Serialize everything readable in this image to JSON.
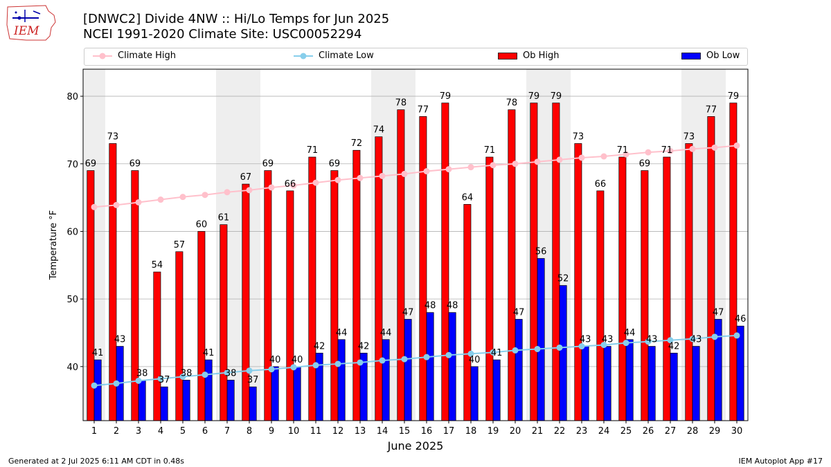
{
  "header": {
    "title_line1": "[DNWC2] Divide 4NW :: Hi/Lo Temps for Jun 2025",
    "title_line2": "NCEI 1991-2020 Climate Site: USC00052294",
    "logo_text": "IEM"
  },
  "legend": {
    "climate_high": "Climate High",
    "climate_low": "Climate Low",
    "ob_high": "Ob High",
    "ob_low": "Ob Low"
  },
  "footer": {
    "left": "Generated at 2 Jul 2025 6:11 AM CDT in 0.48s",
    "right": "IEM Autoplot App #17"
  },
  "colors": {
    "ob_high": "#ff0000",
    "ob_low": "#0000ff",
    "climate_high": "#ffc0cb",
    "climate_low": "#87ceeb",
    "weekend_shade": "#eeeeee",
    "grid": "#b0b0b0"
  },
  "chart_data": {
    "type": "bar",
    "title": "[DNWC2] Divide 4NW :: Hi/Lo Temps for Jun 2025",
    "subtitle": "NCEI 1991-2020 Climate Site: USC00052294",
    "xlabel": "June 2025",
    "ylabel": "Temperature °F",
    "ylim": [
      32,
      84
    ],
    "yticks": [
      40,
      50,
      60,
      70,
      80
    ],
    "grid": "horizontal",
    "legend_position": "top",
    "categories": [
      "1",
      "2",
      "3",
      "4",
      "5",
      "6",
      "7",
      "8",
      "9",
      "10",
      "11",
      "12",
      "13",
      "14",
      "15",
      "16",
      "17",
      "18",
      "19",
      "20",
      "21",
      "22",
      "23",
      "24",
      "25",
      "26",
      "27",
      "28",
      "29",
      "30"
    ],
    "weekend_days": [
      1,
      7,
      8,
      14,
      15,
      21,
      22,
      28,
      29
    ],
    "series": [
      {
        "name": "Ob High",
        "kind": "bar",
        "values": [
          69,
          73,
          69,
          54,
          57,
          60,
          61,
          67,
          69,
          66,
          71,
          69,
          72,
          74,
          78,
          77,
          79,
          64,
          71,
          78,
          79,
          79,
          73,
          66,
          71,
          69,
          71,
          73,
          77,
          79
        ]
      },
      {
        "name": "Ob Low",
        "kind": "bar",
        "values": [
          41,
          43,
          38,
          37,
          38,
          41,
          38,
          37,
          40,
          40,
          42,
          44,
          42,
          44,
          47,
          48,
          48,
          40,
          41,
          47,
          56,
          52,
          43,
          43,
          44,
          43,
          42,
          43,
          47,
          46
        ]
      },
      {
        "name": "Climate High",
        "kind": "line",
        "values": [
          63.6,
          63.9,
          64.3,
          64.7,
          65.1,
          65.4,
          65.8,
          66.1,
          66.5,
          66.8,
          67.2,
          67.6,
          67.9,
          68.2,
          68.5,
          68.9,
          69.2,
          69.5,
          69.8,
          70.0,
          70.3,
          70.6,
          70.9,
          71.1,
          71.4,
          71.7,
          71.9,
          72.2,
          72.4,
          72.7
        ]
      },
      {
        "name": "Climate Low",
        "kind": "line",
        "values": [
          37.2,
          37.5,
          37.9,
          38.2,
          38.5,
          38.8,
          39.1,
          39.4,
          39.6,
          39.9,
          40.2,
          40.4,
          40.6,
          40.9,
          41.1,
          41.4,
          41.7,
          41.9,
          42.1,
          42.4,
          42.6,
          42.8,
          43.0,
          43.2,
          43.5,
          43.7,
          43.9,
          44.1,
          44.4,
          44.6
        ]
      }
    ]
  }
}
